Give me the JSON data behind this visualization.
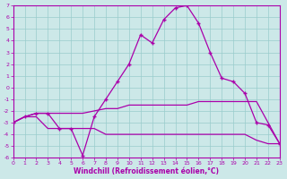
{
  "xlabel": "Windchill (Refroidissement éolien,°C)",
  "xlim": [
    0,
    23
  ],
  "ylim": [
    -6,
    7
  ],
  "xticks": [
    0,
    1,
    2,
    3,
    4,
    5,
    6,
    7,
    8,
    9,
    10,
    11,
    12,
    13,
    14,
    15,
    16,
    17,
    18,
    19,
    20,
    21,
    22,
    23
  ],
  "yticks": [
    -6,
    -5,
    -4,
    -3,
    -2,
    -1,
    0,
    1,
    2,
    3,
    4,
    5,
    6,
    7
  ],
  "bg_color": "#cce8e8",
  "line_color": "#aa00aa",
  "grid_color": "#99cccc",
  "series": [
    {
      "x": [
        0,
        1,
        2,
        3,
        4,
        5,
        6,
        7,
        8,
        9,
        10,
        11,
        12,
        13,
        14,
        15,
        16,
        17,
        18,
        19,
        20,
        21,
        22,
        23
      ],
      "y": [
        -3.0,
        -2.5,
        -2.5,
        -3.5,
        -3.5,
        -3.5,
        -3.5,
        -3.5,
        -4.0,
        -4.0,
        -4.0,
        -4.0,
        -4.0,
        -4.0,
        -4.0,
        -4.0,
        -4.0,
        -4.0,
        -4.0,
        -4.0,
        -4.0,
        -4.5,
        -4.8,
        -4.8
      ],
      "marker": null
    },
    {
      "x": [
        0,
        1,
        2,
        3,
        4,
        5,
        6,
        7,
        8,
        9,
        10,
        11,
        12,
        13,
        14,
        15,
        16,
        17,
        18,
        19,
        20,
        21,
        22,
        23
      ],
      "y": [
        -3.0,
        -2.5,
        -2.2,
        -2.2,
        -2.2,
        -2.2,
        -2.2,
        -2.0,
        -1.8,
        -1.8,
        -1.5,
        -1.5,
        -1.5,
        -1.5,
        -1.5,
        -1.5,
        -1.2,
        -1.2,
        -1.2,
        -1.2,
        -1.2,
        -1.2,
        -3.0,
        -4.8
      ],
      "marker": null
    },
    {
      "x": [
        0,
        1,
        2,
        3,
        4,
        5,
        6,
        7,
        8,
        9,
        10,
        11,
        12,
        13,
        14,
        15,
        16,
        17,
        18,
        19,
        20,
        21,
        22,
        23
      ],
      "y": [
        -3.0,
        -2.5,
        -2.2,
        -2.2,
        -3.5,
        -3.5,
        -5.8,
        -2.5,
        -1.0,
        0.5,
        2.0,
        4.5,
        3.8,
        5.8,
        6.8,
        7.0,
        5.5,
        3.0,
        0.8,
        0.5,
        -0.5,
        -3.0,
        -3.2,
        -4.8
      ],
      "marker": "+"
    }
  ]
}
